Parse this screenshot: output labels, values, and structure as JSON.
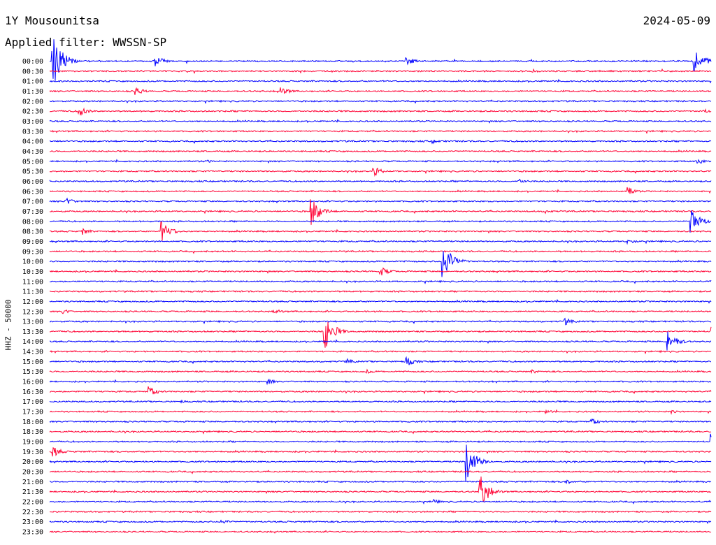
{
  "header": {
    "station": "1Y Mousounitsa",
    "date": "2024-05-09",
    "filter": "Applied filter: WWSSN-SP"
  },
  "chart_data": {
    "type": "line",
    "title": "1Y Mousounitsa",
    "subtitle": "Applied filter: WWSSN-SP",
    "ylabel": "HHZ - 50000",
    "xlabel": "",
    "row_colors": [
      "#0000ff",
      "#ff0033"
    ],
    "rows": [
      {
        "label": "00:00",
        "events": [
          [
            0.5,
            45
          ],
          [
            16,
            8
          ],
          [
            54,
            6
          ],
          [
            97.5,
            20
          ]
        ]
      },
      {
        "label": "00:30",
        "events": [
          [
            73,
            3
          ]
        ]
      },
      {
        "label": "01:00",
        "events": []
      },
      {
        "label": "01:30",
        "events": [
          [
            13,
            6
          ],
          [
            35,
            6
          ]
        ]
      },
      {
        "label": "02:00",
        "events": []
      },
      {
        "label": "02:30",
        "events": [
          [
            4.5,
            7
          ],
          [
            99,
            3
          ]
        ]
      },
      {
        "label": "03:00",
        "events": []
      },
      {
        "label": "03:30",
        "events": []
      },
      {
        "label": "04:00",
        "events": [
          [
            58,
            3
          ]
        ]
      },
      {
        "label": "04:30",
        "events": []
      },
      {
        "label": "05:00",
        "events": [
          [
            24,
            2
          ],
          [
            98,
            4
          ]
        ]
      },
      {
        "label": "05:30",
        "events": [
          [
            49,
            7
          ]
        ]
      },
      {
        "label": "06:00",
        "events": [
          [
            71,
            4
          ]
        ]
      },
      {
        "label": "06:30",
        "events": [
          [
            87.5,
            6
          ]
        ]
      },
      {
        "label": "07:00",
        "events": [
          [
            2.5,
            6
          ]
        ]
      },
      {
        "label": "07:30",
        "events": [
          [
            39.5,
            22
          ],
          [
            75,
            3
          ]
        ]
      },
      {
        "label": "08:00",
        "events": [
          [
            97,
            20
          ]
        ]
      },
      {
        "label": "08:30",
        "events": [
          [
            5,
            5
          ],
          [
            17,
            14
          ]
        ]
      },
      {
        "label": "09:00",
        "events": [
          [
            87.5,
            4
          ]
        ]
      },
      {
        "label": "09:30",
        "events": []
      },
      {
        "label": "10:00",
        "events": [
          [
            59.5,
            30
          ]
        ]
      },
      {
        "label": "10:30",
        "events": [
          [
            50,
            7
          ]
        ]
      },
      {
        "label": "11:00",
        "events": []
      },
      {
        "label": "11:30",
        "events": []
      },
      {
        "label": "12:00",
        "events": []
      },
      {
        "label": "12:30",
        "events": [
          [
            2,
            4
          ],
          [
            34,
            4
          ]
        ]
      },
      {
        "label": "13:00",
        "events": [
          [
            78,
            5
          ]
        ]
      },
      {
        "label": "13:30",
        "events": [
          [
            41.5,
            30
          ],
          [
            100,
            7
          ]
        ]
      },
      {
        "label": "14:00",
        "events": [
          [
            93.5,
            16
          ]
        ]
      },
      {
        "label": "14:30",
        "events": []
      },
      {
        "label": "15:00",
        "events": [
          [
            45,
            4
          ],
          [
            54,
            7
          ]
        ]
      },
      {
        "label": "15:30",
        "events": [
          [
            48,
            3
          ],
          [
            73,
            3
          ]
        ]
      },
      {
        "label": "16:00",
        "events": [
          [
            33,
            4
          ]
        ]
      },
      {
        "label": "16:30",
        "events": [
          [
            15,
            8
          ]
        ]
      },
      {
        "label": "17:00",
        "events": [
          [
            20,
            2
          ]
        ]
      },
      {
        "label": "17:30",
        "events": [
          [
            75,
            3
          ],
          [
            94,
            3
          ]
        ]
      },
      {
        "label": "18:00",
        "events": [
          [
            82,
            5
          ]
        ]
      },
      {
        "label": "18:30",
        "events": []
      },
      {
        "label": "19:00",
        "events": [
          [
            100,
            12
          ]
        ]
      },
      {
        "label": "19:30",
        "events": [
          [
            0.5,
            8
          ]
        ]
      },
      {
        "label": "20:00",
        "events": [
          [
            63,
            30
          ]
        ]
      },
      {
        "label": "20:30",
        "events": []
      },
      {
        "label": "21:00",
        "events": [
          [
            78,
            4
          ]
        ]
      },
      {
        "label": "21:30",
        "events": [
          [
            65,
            28
          ]
        ]
      },
      {
        "label": "22:00",
        "events": [
          [
            58,
            4
          ]
        ]
      },
      {
        "label": "22:30",
        "events": []
      },
      {
        "label": "23:00",
        "events": [
          [
            26,
            4
          ]
        ]
      },
      {
        "label": "23:30",
        "events": []
      }
    ]
  }
}
